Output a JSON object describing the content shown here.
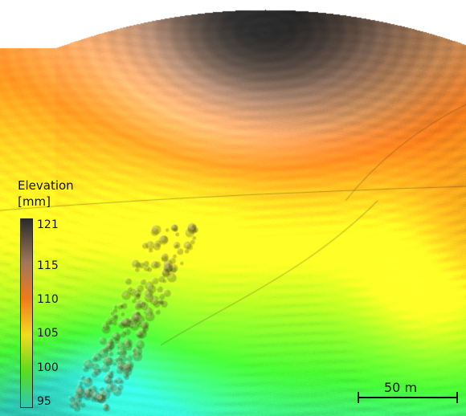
{
  "legend": {
    "title": "Elevation",
    "unit": "[mm]",
    "ticks": [
      "121",
      "115",
      "110",
      "105",
      "100",
      "95"
    ],
    "tick_values": [
      121,
      115,
      110,
      105,
      100,
      95
    ],
    "range": [
      95,
      121
    ],
    "colors": {
      "121": "#2b2b2b",
      "115": "#a0785a",
      "110": "#f07a1c",
      "105": "#f3dc1e",
      "100": "#5bdc1c",
      "95": "#2ec9b4"
    }
  },
  "scale_bar": {
    "label": "50 m"
  },
  "map": {
    "type": "shaded-relief elevation",
    "palette": [
      "#2ec9b4",
      "#3fdc2e",
      "#a8e21e",
      "#f3e020",
      "#f7b21c",
      "#f07a1c",
      "#c98a55",
      "#8e6f5c",
      "#2b2b2b"
    ]
  }
}
